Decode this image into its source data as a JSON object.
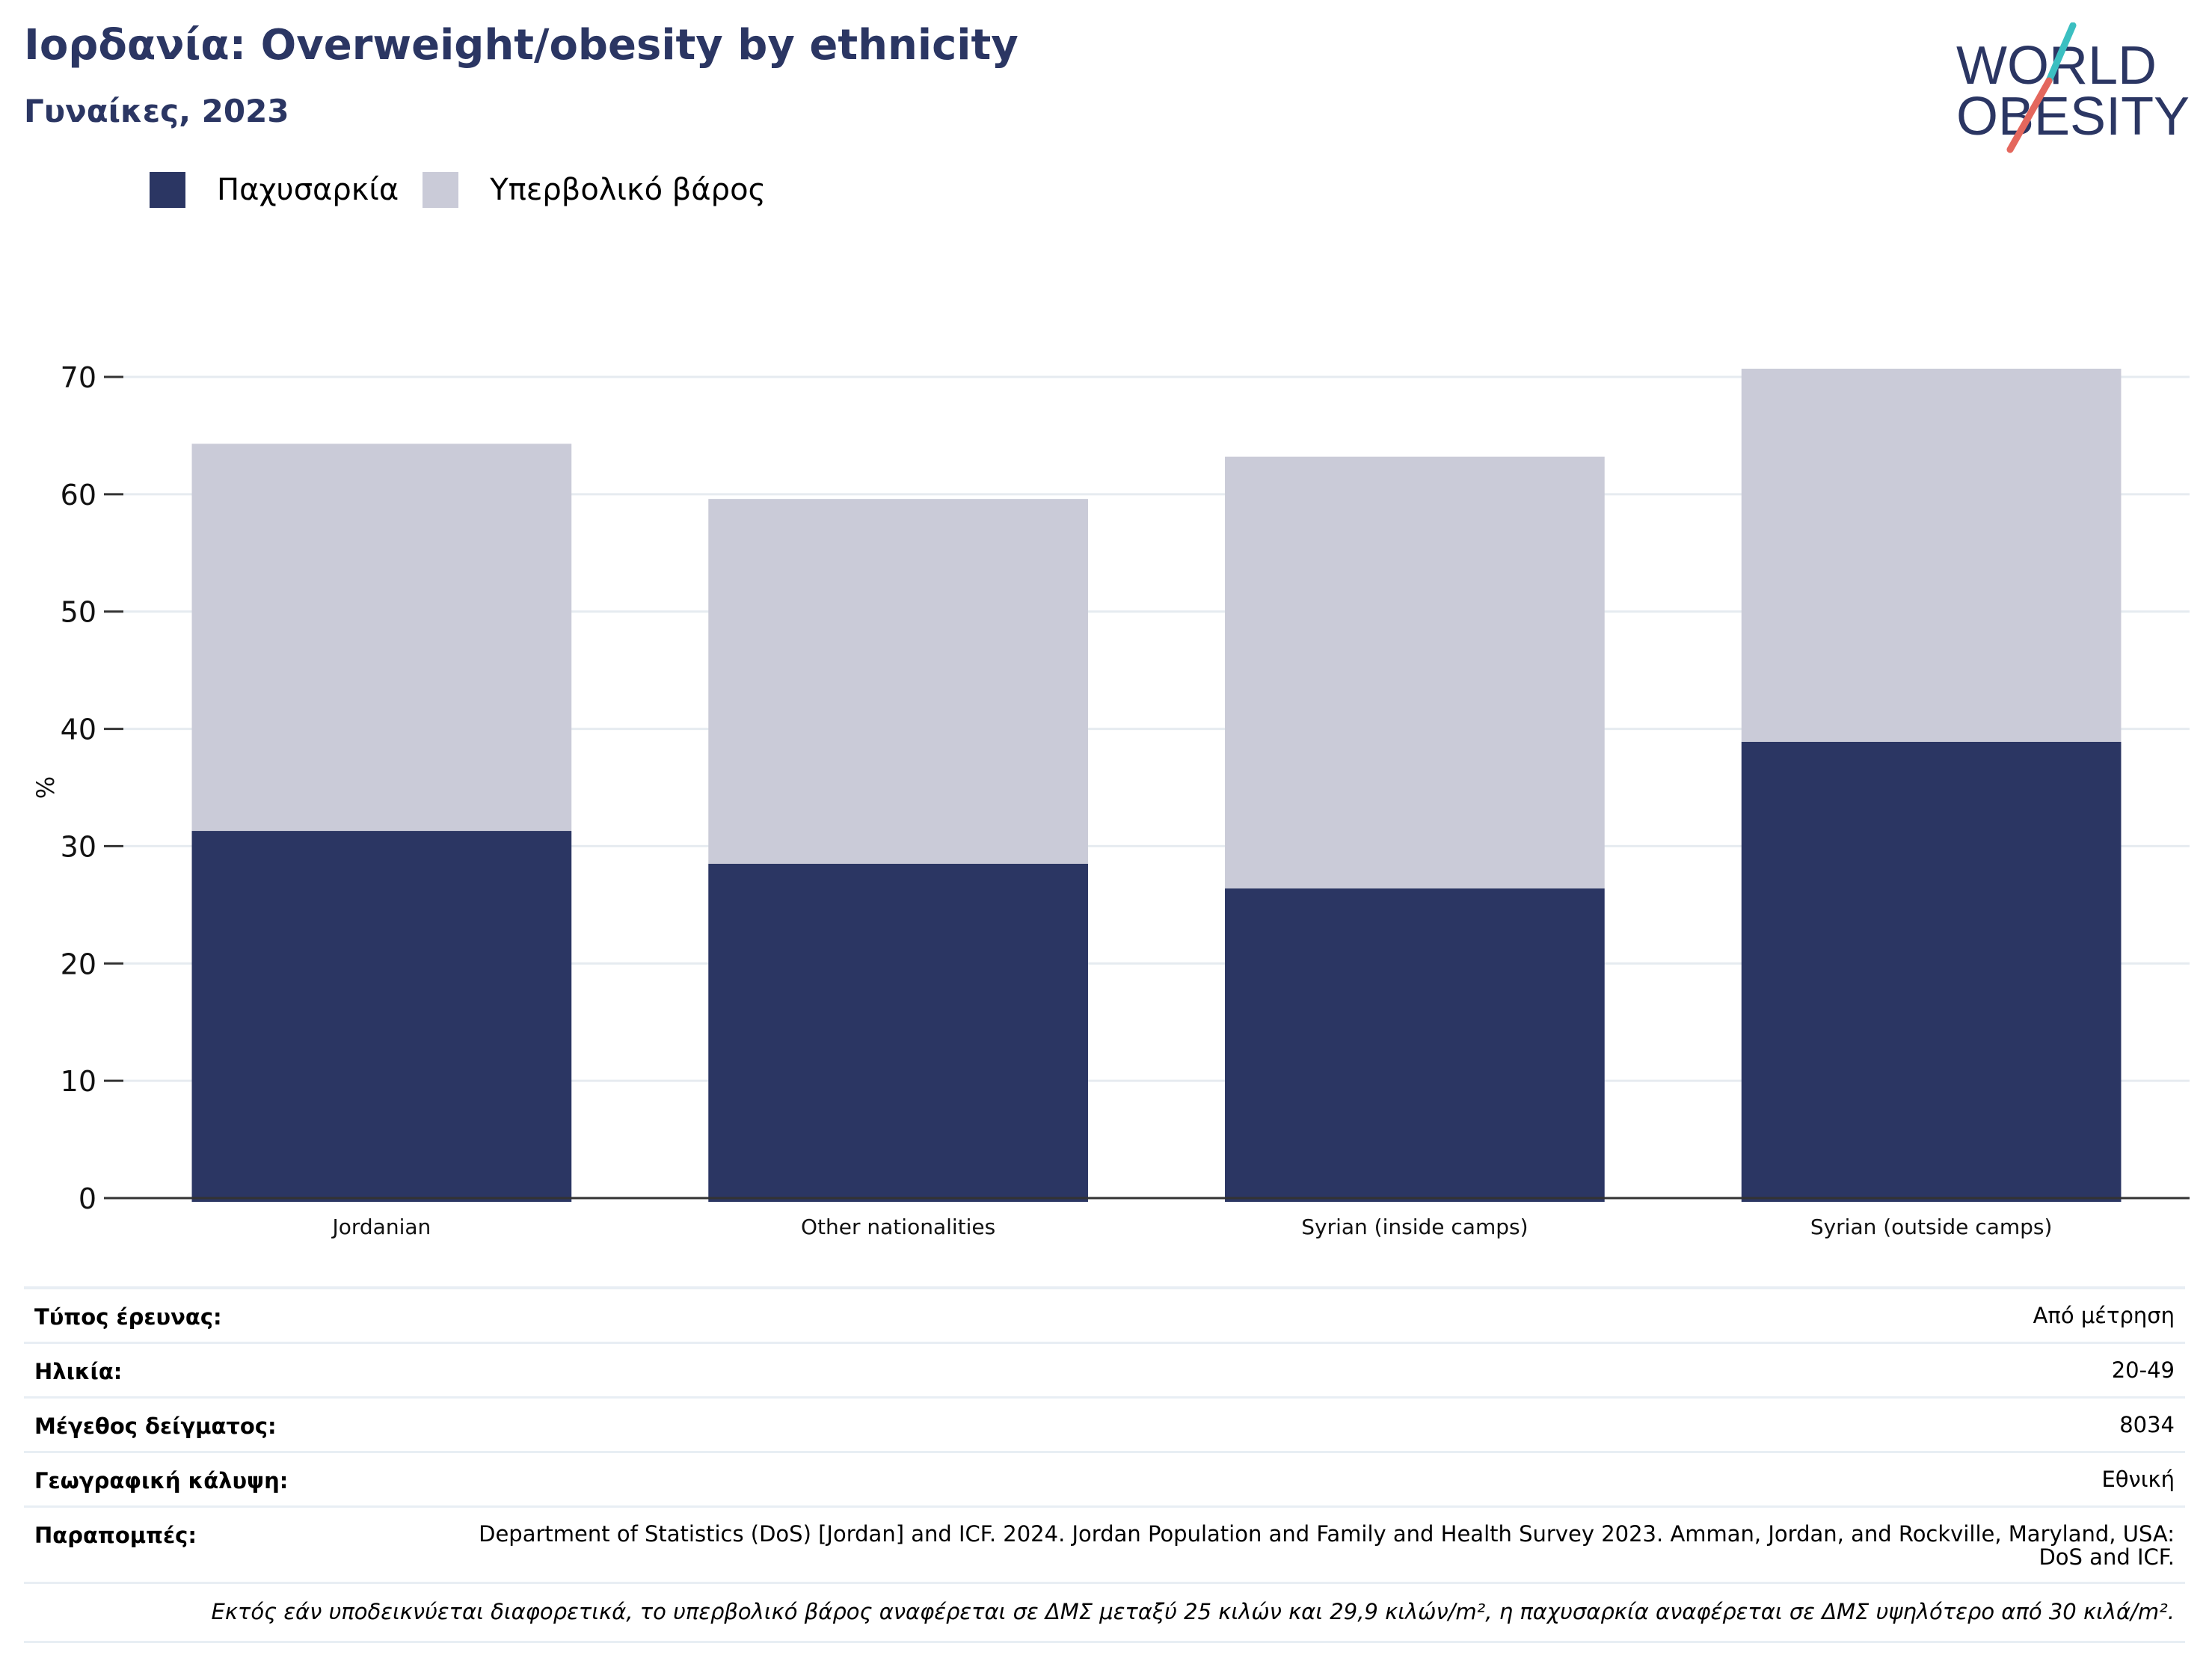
{
  "header": {
    "title": "Ιορδανία: Overweight/obesity by ethnicity",
    "subtitle": "Γυναίκες, 2023"
  },
  "logo": {
    "line1": "WORLD",
    "line2": "OBESITY",
    "text_color": "#2b3663",
    "slash_colors": [
      "#3bbfc1",
      "#e4675d"
    ]
  },
  "legend": [
    {
      "label": "Παχυσαρκία",
      "color": "#2b3663"
    },
    {
      "label": "Υπερβολικό βάρος",
      "color": "#cacbd8"
    }
  ],
  "chart_data": {
    "type": "bar",
    "stacked": true,
    "categories": [
      "Jordanian",
      "Other nationalities",
      "Syrian (inside camps)",
      "Syrian (outside camps)"
    ],
    "series": [
      {
        "name": "Παχυσαρκία",
        "color": "#2b3663",
        "values": [
          31.3,
          28.5,
          26.4,
          38.9
        ]
      },
      {
        "name": "Υπερβολικό βάρος",
        "color": "#cacbd8",
        "values": [
          33.0,
          31.1,
          36.8,
          31.8
        ]
      }
    ],
    "ylabel": "%",
    "ylim": [
      0,
      70
    ],
    "yticks": [
      0,
      10,
      20,
      30,
      40,
      50,
      60,
      70
    ],
    "grid": true,
    "legend_position": "top-left"
  },
  "info": {
    "rows": [
      {
        "label": "Τύπος έρευνας:",
        "value": "Από μέτρηση"
      },
      {
        "label": "Ηλικία:",
        "value": "20-49"
      },
      {
        "label": "Μέγεθος δείγματος:",
        "value": "8034"
      },
      {
        "label": "Γεωγραφική κάλυψη:",
        "value": "Εθνική"
      },
      {
        "label": "Παραπομπές:",
        "value": "Department of Statistics (DoS) [Jordan] and ICF. 2024. Jordan Population and Family and Health Survey 2023. Amman, Jordan, and Rockville, Maryland, USA: DoS and ICF."
      }
    ],
    "footnote": "Εκτός εάν υποδεικνύεται διαφορετικά, το υπερβολικό βάρος αναφέρεται σε ΔΜΣ μεταξύ 25 κιλών και 29,9 κιλών/m², η παχυσαρκία αναφέρεται σε ΔΜΣ υψηλότερο από 30 κιλά/m²."
  }
}
